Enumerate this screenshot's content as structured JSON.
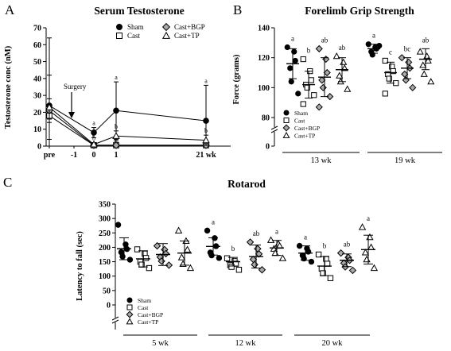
{
  "chart_data": [
    {
      "panel": "A",
      "type": "line",
      "title": "Serum Testosterone",
      "ylabel": "Testosterone conc (nM)",
      "ylim": [
        0,
        70
      ],
      "yticks": [
        0,
        10,
        20,
        30,
        40,
        50,
        60,
        70
      ],
      "x_labels": [
        "pre",
        "-1",
        "0",
        "1",
        "21 wk"
      ],
      "annotation": "Surgery",
      "legend": [
        "Sham",
        "Cast",
        "Cast+BGP",
        "Cast+TP"
      ],
      "legend_position": "top",
      "series": [
        {
          "name": "Sham",
          "marker": "circle-filled",
          "mean": [
            24,
            null,
            8,
            21,
            15
          ],
          "sd": [
            40,
            null,
            3,
            17,
            21
          ],
          "labels": [
            "",
            "",
            "a",
            "a",
            "a"
          ]
        },
        {
          "name": "Cast",
          "marker": "square-open",
          "mean": [
            18,
            null,
            0.5,
            0.5,
            0.5
          ],
          "sd": [
            2,
            null,
            0.3,
            0.3,
            0.3
          ],
          "labels": [
            "",
            "",
            "",
            "",
            ""
          ]
        },
        {
          "name": "Cast+BGP",
          "marker": "diamond-open",
          "mean": [
            21,
            null,
            0.5,
            0.5,
            0.5
          ],
          "sd": [
            7,
            null,
            0.3,
            0.3,
            0.3
          ],
          "labels": [
            "",
            "",
            "",
            "c",
            "c"
          ]
        },
        {
          "name": "Cast+TP",
          "marker": "triangle-open",
          "mean": [
            23,
            null,
            1,
            6,
            3.5
          ],
          "sd": [
            19,
            null,
            1,
            3,
            3
          ],
          "labels": [
            "",
            "",
            "b",
            "b",
            "b"
          ]
        }
      ]
    },
    {
      "panel": "B",
      "type": "scatter",
      "title": "Forelimb Grip Strength",
      "ylabel": "Force (grams)",
      "ylim": [
        0,
        140
      ],
      "yticks": [
        0,
        80,
        100,
        120,
        140
      ],
      "groups": [
        "13 wk",
        "19 wk"
      ],
      "legend": [
        "Sham",
        "Cast",
        "Cast+BGP",
        "Cast+TP"
      ],
      "series": [
        {
          "name": "Sham",
          "marker": "circle-filled",
          "group_points": [
            [
              127,
              124,
              118,
              113,
              104,
              96
            ],
            [
              129,
              127,
              126,
              124,
              122,
              128
            ]
          ],
          "mean": [
            116,
            126
          ],
          "sd": [
            10,
            3
          ],
          "labels": [
            "a",
            "a"
          ]
        },
        {
          "name": "Cast",
          "marker": "square-open",
          "group_points": [
            [
              119,
              111,
              105,
              102,
              100,
              95,
              89
            ],
            [
              118,
              114,
              111,
              109,
              106,
              103,
              96
            ]
          ],
          "mean": [
            102,
            110
          ],
          "sd": [
            9,
            7
          ],
          "labels": [
            "b",
            "c"
          ]
        },
        {
          "name": "Cast+BGP",
          "marker": "diamond-open",
          "group_points": [
            [
              126,
              119,
              110,
              105,
              100,
              94,
              87
            ],
            [
              120,
              117,
              113,
              109,
              105,
              100
            ]
          ],
          "mean": [
            107,
            113
          ],
          "sd": [
            13,
            7
          ],
          "labels": [
            "ab",
            "bc"
          ]
        },
        {
          "name": "Cast+TP",
          "marker": "triangle-open",
          "group_points": [
            [
              121,
              117,
              113,
              108,
              104,
              99
            ],
            [
              124,
              121,
              118,
              115,
              109,
              104
            ]
          ],
          "mean": [
            112,
            119
          ],
          "sd": [
            8,
            7
          ],
          "labels": [
            "ab",
            "ab"
          ]
        }
      ]
    },
    {
      "panel": "C",
      "type": "scatter",
      "title": "Rotarod",
      "ylabel": "Latency to fall (sec)",
      "ylim": [
        0,
        350
      ],
      "yticks": [
        0,
        50,
        100,
        150,
        200,
        250,
        300,
        350
      ],
      "groups": [
        "5 wk",
        "12 wk",
        "20 wk"
      ],
      "legend": [
        "Sham",
        "Cast",
        "Cast+BGP",
        "Cast+TP"
      ],
      "series": [
        {
          "name": "Sham",
          "marker": "circle-filled",
          "group_points": [
            [
              278,
              210,
              194,
              183,
              168,
              157
            ],
            [
              258,
              232,
              204,
              182,
              172,
              163
            ],
            [
              205,
              196,
              185,
              172,
              161,
              150
            ]
          ],
          "mean": [
            195,
            203,
            180
          ],
          "sd": [
            38,
            30,
            25
          ],
          "labels": [
            "",
            "a",
            "a"
          ]
        },
        {
          "name": "Cast",
          "marker": "square-open",
          "group_points": [
            [
              193,
              178,
              163,
              150,
              140,
              128
            ],
            [
              162,
              152,
              143,
              138,
              132,
              122
            ],
            [
              175,
              160,
              143,
              126,
              110,
              93
            ]
          ],
          "mean": [
            160,
            150,
            135
          ],
          "sd": [
            28,
            15,
            33
          ],
          "labels": [
            "",
            "b",
            "b"
          ]
        },
        {
          "name": "Cast+BGP",
          "marker": "diamond-open",
          "group_points": [
            [
              205,
              192,
              178,
              166,
              152,
              138
            ],
            [
              218,
              195,
              177,
              158,
              140,
              122
            ],
            [
              180,
              165,
              155,
              145,
              132,
              120
            ]
          ],
          "mean": [
            175,
            168,
            155
          ],
          "sd": [
            38,
            40,
            22
          ],
          "labels": [
            "",
            "ab",
            "ab"
          ]
        },
        {
          "name": "Cast+TP",
          "marker": "triangle-open",
          "group_points": [
            [
              258,
              222,
              192,
              165,
              142,
              128
            ],
            [
              225,
              212,
              205,
              195,
              180,
              162
            ],
            [
              270,
              235,
              200,
              182,
              158,
              128
            ]
          ],
          "mean": [
            180,
            198,
            192
          ],
          "sd": [
            42,
            26,
            50
          ],
          "labels": [
            "",
            "a",
            "a"
          ]
        }
      ]
    }
  ]
}
